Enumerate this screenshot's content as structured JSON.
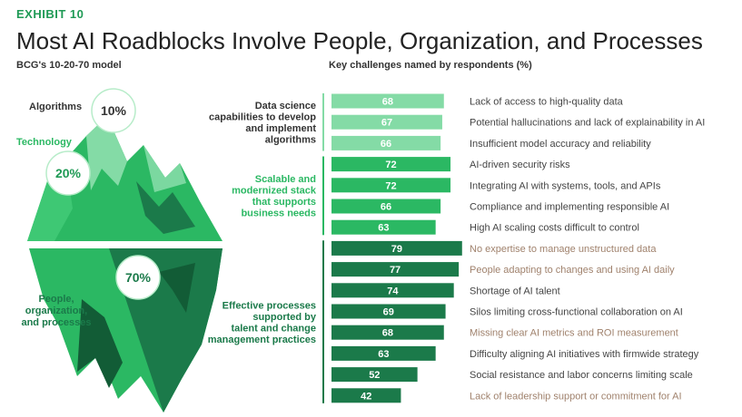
{
  "header": {
    "exhibit": "EXHIBIT 10",
    "title": "Most AI Roadblocks Involve People, Organization, and Processes",
    "model_subtitle": "BCG's 10-20-70 model",
    "chart_subtitle": "Key challenges named by respondents (%)"
  },
  "model": {
    "algorithms_label": "Algorithms",
    "algorithms_pct": "10%",
    "technology_label": "Technology",
    "technology_pct": "20%",
    "people_label_lines": [
      "People,",
      "organization,",
      "and processes"
    ],
    "people_pct": "70%"
  },
  "colors": {
    "light_green": "#84dba6",
    "mid_green": "#2bb863",
    "dark_green": "#1b7a4a",
    "highlight_text": "#a0826d",
    "normal_text": "#444444"
  },
  "chart_data": {
    "type": "bar",
    "orientation": "horizontal",
    "title": "Key challenges named by respondents (%)",
    "xlim": [
      0,
      100
    ],
    "groups": [
      {
        "name_lines": [
          "Data science",
          "capabilities to develop",
          "and implement",
          "algorithms"
        ],
        "color": "#84dba6",
        "items": [
          {
            "label": "Lack of access to high-quality data",
            "value": 68,
            "highlight": false
          },
          {
            "label": "Potential hallucinations and lack of explainability in AI",
            "value": 67,
            "highlight": false
          },
          {
            "label": "Insufficient model accuracy and reliability",
            "value": 66,
            "highlight": false
          }
        ]
      },
      {
        "name_lines": [
          "Scalable and",
          "modernized stack",
          "that supports",
          "business needs"
        ],
        "color": "#2bb863",
        "items": [
          {
            "label": "AI-driven security risks",
            "value": 72,
            "highlight": false
          },
          {
            "label": "Integrating AI with systems, tools, and APIs",
            "value": 72,
            "highlight": false
          },
          {
            "label": "Compliance and implementing responsible AI",
            "value": 66,
            "highlight": false
          },
          {
            "label": "High AI scaling costs difficult to control",
            "value": 63,
            "highlight": false
          }
        ]
      },
      {
        "name_lines": [
          "Effective processes",
          "supported by",
          "talent and change",
          "management practices"
        ],
        "color": "#1b7a4a",
        "items": [
          {
            "label": "No expertise to manage unstructured data",
            "value": 79,
            "highlight": true
          },
          {
            "label": "People adapting to changes and using AI daily",
            "value": 77,
            "highlight": true
          },
          {
            "label": "Shortage of AI talent",
            "value": 74,
            "highlight": false
          },
          {
            "label": "Silos limiting cross-functional collaboration on AI",
            "value": 69,
            "highlight": false
          },
          {
            "label": "Missing clear AI metrics and ROI measurement",
            "value": 68,
            "highlight": true
          },
          {
            "label": "Difficulty aligning AI initiatives with firmwide strategy",
            "value": 63,
            "highlight": false
          },
          {
            "label": "Social resistance and labor concerns limiting scale",
            "value": 52,
            "highlight": false
          },
          {
            "label": "Lack of leadership support or commitment for AI",
            "value": 42,
            "highlight": true
          }
        ]
      }
    ]
  }
}
